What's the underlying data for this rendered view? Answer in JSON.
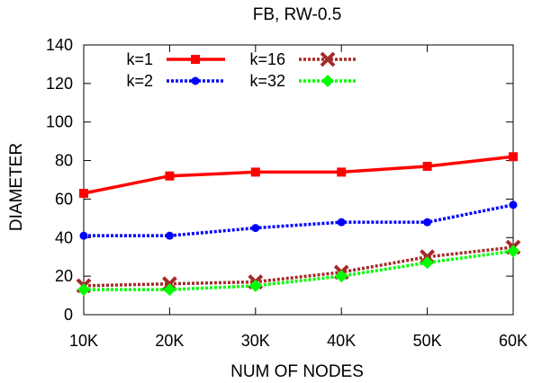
{
  "chart_data": {
    "type": "line",
    "title": "FB, RW-0.5",
    "xlabel": "NUM OF NODES",
    "ylabel": "DIAMETER",
    "categories": [
      "10K",
      "20K",
      "30K",
      "40K",
      "50K",
      "60K"
    ],
    "ylim": [
      0,
      140
    ],
    "yticks": [
      0,
      20,
      40,
      60,
      80,
      100,
      120,
      140
    ],
    "grid": false,
    "legend_position": "top-left",
    "series": [
      {
        "name": "k=1",
        "values": [
          63,
          72,
          74,
          74,
          77,
          82
        ],
        "color": "#ff0000",
        "marker": "square",
        "dash": "solid"
      },
      {
        "name": "k=2",
        "values": [
          41,
          41,
          45,
          48,
          48,
          57
        ],
        "color": "#0000ff",
        "marker": "circle",
        "dash": "dotted"
      },
      {
        "name": "k=16",
        "values": [
          15,
          16,
          17,
          22,
          30,
          35
        ],
        "color": "#a52a2a",
        "marker": "x",
        "dash": "dotted"
      },
      {
        "name": "k=32",
        "values": [
          13,
          13,
          15,
          20,
          27,
          33
        ],
        "color": "#00ff00",
        "marker": "diamond",
        "dash": "dotted"
      }
    ]
  }
}
